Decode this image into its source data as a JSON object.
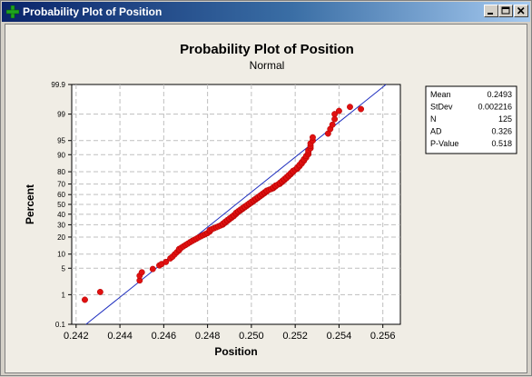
{
  "window": {
    "title": "Probability Plot of Position",
    "icon": "green-plus-icon",
    "controls": {
      "minimize": "minimize-icon",
      "maximize": "maximize-icon",
      "close": "close-icon"
    }
  },
  "colors": {
    "titlebar_start": "#0a246a",
    "titlebar_end": "#a6caf0",
    "panel_background": "#f0ede5",
    "plot_background": "#ffffff",
    "grid": "#bfbfbf",
    "fit_line": "#1f2fbf",
    "points": "#e01010"
  },
  "chart_data": {
    "type": "scatter",
    "title": "Probability Plot of Position",
    "subtitle": "Normal",
    "xlabel": "Position",
    "ylabel": "Percent",
    "x_scale": "linear",
    "y_scale": "normal-probability",
    "xlim": [
      0.2418,
      0.2568
    ],
    "ylim": [
      0.1,
      99.9
    ],
    "x_ticks": [
      "0.242",
      "0.244",
      "0.246",
      "0.248",
      "0.250",
      "0.252",
      "0.254",
      "0.256"
    ],
    "y_ticks": [
      "0.1",
      "1",
      "5",
      "10",
      "20",
      "30",
      "40",
      "50",
      "60",
      "70",
      "80",
      "90",
      "95",
      "99",
      "99.9"
    ],
    "grid": true,
    "fit": {
      "mean": 0.2493,
      "stdev": 0.002216
    },
    "stats_box": {
      "placement": "right",
      "rows": [
        {
          "label": "Mean",
          "value": "0.2493"
        },
        {
          "label": "StDev",
          "value": "0.002216"
        },
        {
          "label": "N",
          "value": "125"
        },
        {
          "label": "AD",
          "value": "0.326"
        },
        {
          "label": "P-Value",
          "value": "0.518"
        }
      ]
    },
    "n": 125,
    "points": [
      [
        0.2424,
        0.7
      ],
      [
        0.2431,
        1.2
      ],
      [
        0.2449,
        2.5
      ],
      [
        0.2449,
        3.3
      ],
      [
        0.245,
        4.0
      ],
      [
        0.2455,
        4.8
      ],
      [
        0.2458,
        5.8
      ],
      [
        0.2459,
        6.2
      ],
      [
        0.2461,
        6.9
      ],
      [
        0.2463,
        8.2
      ],
      [
        0.2464,
        8.9
      ],
      [
        0.2465,
        9.9
      ],
      [
        0.2466,
        10.9
      ],
      [
        0.2467,
        11.8
      ],
      [
        0.2467,
        12.5
      ],
      [
        0.2468,
        13.2
      ],
      [
        0.2469,
        14.0
      ],
      [
        0.247,
        14.8
      ],
      [
        0.2471,
        15.6
      ],
      [
        0.2472,
        16.5
      ],
      [
        0.2473,
        17.3
      ],
      [
        0.2474,
        18.1
      ],
      [
        0.2475,
        18.9
      ],
      [
        0.2476,
        19.8
      ],
      [
        0.2477,
        20.6
      ],
      [
        0.2478,
        21.4
      ],
      [
        0.2479,
        22.2
      ],
      [
        0.248,
        23.0
      ],
      [
        0.2481,
        24.2
      ],
      [
        0.2481,
        25.4
      ],
      [
        0.2482,
        26.2
      ],
      [
        0.2483,
        27.0
      ],
      [
        0.2484,
        27.8
      ],
      [
        0.2485,
        28.6
      ],
      [
        0.2486,
        29.4
      ],
      [
        0.2487,
        30.2
      ],
      [
        0.2487,
        31.0
      ],
      [
        0.2488,
        31.8
      ],
      [
        0.2488,
        32.6
      ],
      [
        0.2489,
        33.4
      ],
      [
        0.2489,
        34.2
      ],
      [
        0.249,
        35.0
      ],
      [
        0.249,
        35.8
      ],
      [
        0.2491,
        36.6
      ],
      [
        0.2491,
        37.4
      ],
      [
        0.2492,
        38.2
      ],
      [
        0.2492,
        39.0
      ],
      [
        0.2493,
        40.2
      ],
      [
        0.2493,
        41.4
      ],
      [
        0.2494,
        42.2
      ],
      [
        0.2494,
        43.0
      ],
      [
        0.2495,
        43.8
      ],
      [
        0.2495,
        44.6
      ],
      [
        0.2496,
        45.4
      ],
      [
        0.2496,
        46.2
      ],
      [
        0.2497,
        47.0
      ],
      [
        0.2497,
        47.8
      ],
      [
        0.2498,
        48.6
      ],
      [
        0.2498,
        49.4
      ],
      [
        0.2499,
        50.2
      ],
      [
        0.2499,
        51.0
      ],
      [
        0.25,
        51.8
      ],
      [
        0.25,
        52.6
      ],
      [
        0.2501,
        53.4
      ],
      [
        0.2501,
        54.2
      ],
      [
        0.2502,
        55.0
      ],
      [
        0.2502,
        55.8
      ],
      [
        0.2503,
        56.6
      ],
      [
        0.2503,
        57.4
      ],
      [
        0.2504,
        58.2
      ],
      [
        0.2504,
        59.0
      ],
      [
        0.2505,
        59.8
      ],
      [
        0.2505,
        60.6
      ],
      [
        0.2506,
        61.4
      ],
      [
        0.2506,
        62.2
      ],
      [
        0.2507,
        63.0
      ],
      [
        0.2507,
        63.8
      ],
      [
        0.2508,
        64.6
      ],
      [
        0.2509,
        65.4
      ],
      [
        0.251,
        66.2
      ],
      [
        0.251,
        67.0
      ],
      [
        0.2511,
        67.8
      ],
      [
        0.2511,
        68.6
      ],
      [
        0.2512,
        69.4
      ],
      [
        0.2513,
        70.2
      ],
      [
        0.2513,
        71.0
      ],
      [
        0.2514,
        71.8
      ],
      [
        0.2514,
        72.6
      ],
      [
        0.2515,
        73.4
      ],
      [
        0.2515,
        74.2
      ],
      [
        0.2516,
        75.0
      ],
      [
        0.2516,
        75.8
      ],
      [
        0.2517,
        76.6
      ],
      [
        0.2517,
        77.4
      ],
      [
        0.2518,
        78.2
      ],
      [
        0.2518,
        79.0
      ],
      [
        0.2519,
        79.8
      ],
      [
        0.2519,
        80.6
      ],
      [
        0.252,
        81.4
      ],
      [
        0.2521,
        82.2
      ],
      [
        0.2521,
        83.0
      ],
      [
        0.2522,
        83.8
      ],
      [
        0.2522,
        84.6
      ],
      [
        0.2523,
        85.4
      ],
      [
        0.2523,
        86.2
      ],
      [
        0.2524,
        87.0
      ],
      [
        0.2524,
        87.8
      ],
      [
        0.2525,
        88.6
      ],
      [
        0.2525,
        89.4
      ],
      [
        0.2526,
        90.2
      ],
      [
        0.2526,
        91.0
      ],
      [
        0.2526,
        91.8
      ],
      [
        0.2527,
        92.6
      ],
      [
        0.2527,
        93.4
      ],
      [
        0.2527,
        94.2
      ],
      [
        0.2528,
        95.0
      ],
      [
        0.2528,
        95.8
      ],
      [
        0.2535,
        96.6
      ],
      [
        0.2536,
        97.4
      ],
      [
        0.2537,
        98.0
      ],
      [
        0.2538,
        98.6
      ],
      [
        0.2538,
        99.0
      ],
      [
        0.254,
        99.2
      ],
      [
        0.2545,
        99.4
      ],
      [
        0.255,
        99.3
      ]
    ]
  }
}
